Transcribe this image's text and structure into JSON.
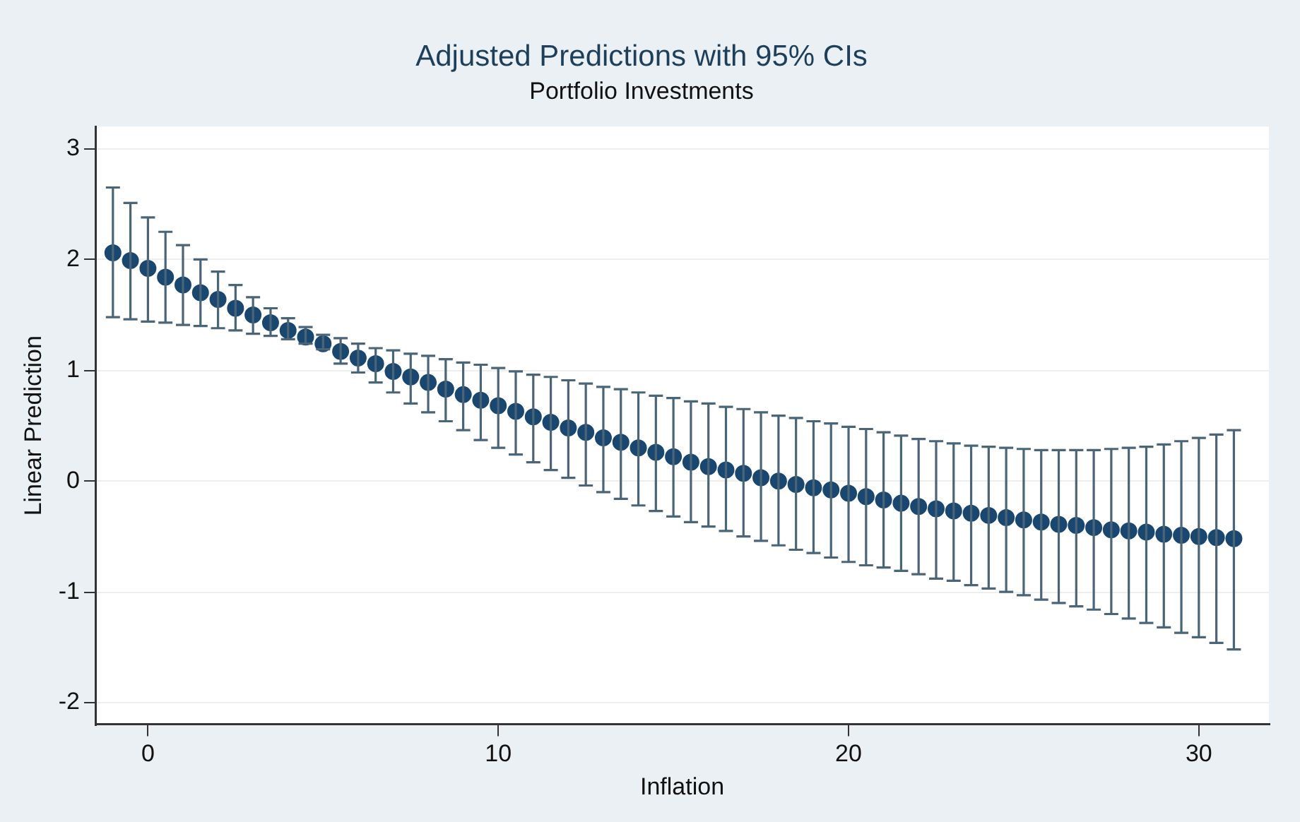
{
  "chart_data": {
    "type": "scatter",
    "title": "Adjusted Predictions with 95% CIs",
    "subtitle": "Portfolio Investments",
    "xlabel": "Inflation",
    "ylabel": "Linear Prediction",
    "x": [
      -1,
      -0.5,
      0,
      0.5,
      1,
      1.5,
      2,
      2.5,
      3,
      3.5,
      4,
      4.5,
      5,
      5.5,
      6,
      6.5,
      7,
      7.5,
      8,
      8.5,
      9,
      9.5,
      10,
      10.5,
      11,
      11.5,
      12,
      12.5,
      13,
      13.5,
      14,
      14.5,
      15,
      15.5,
      16,
      16.5,
      17,
      17.5,
      18,
      18.5,
      19,
      19.5,
      20,
      20.5,
      21,
      21.5,
      22,
      22.5,
      23,
      23.5,
      24,
      24.5,
      25,
      25.5,
      26,
      26.5,
      27,
      27.5,
      28,
      28.5,
      29,
      29.5,
      30,
      30.5,
      31
    ],
    "series": [
      {
        "color": "#1a476f",
        "values": [
          2.06,
          1.99,
          1.92,
          1.84,
          1.77,
          1.7,
          1.64,
          1.56,
          1.5,
          1.43,
          1.36,
          1.3,
          1.24,
          1.17,
          1.11,
          1.06,
          0.99,
          0.94,
          0.89,
          0.83,
          0.78,
          0.73,
          0.68,
          0.63,
          0.58,
          0.53,
          0.48,
          0.44,
          0.39,
          0.35,
          0.3,
          0.26,
          0.22,
          0.17,
          0.13,
          0.1,
          0.07,
          0.03,
          0.0,
          -0.03,
          -0.06,
          -0.08,
          -0.11,
          -0.14,
          -0.17,
          -0.2,
          -0.23,
          -0.25,
          -0.27,
          -0.29,
          -0.31,
          -0.33,
          -0.35,
          -0.37,
          -0.39,
          -0.4,
          -0.42,
          -0.44,
          -0.45,
          -0.46,
          -0.48,
          -0.49,
          -0.5,
          -0.51,
          -0.52
        ],
        "errors": [
          [
            1.48,
            2.65
          ],
          [
            1.46,
            2.51
          ],
          [
            1.44,
            2.38
          ],
          [
            1.43,
            2.25
          ],
          [
            1.41,
            2.13
          ],
          [
            1.4,
            2.0
          ],
          [
            1.38,
            1.89
          ],
          [
            1.36,
            1.77
          ],
          [
            1.33,
            1.66
          ],
          [
            1.31,
            1.56
          ],
          [
            1.28,
            1.47
          ],
          [
            1.24,
            1.39
          ],
          [
            1.19,
            1.32
          ],
          [
            1.06,
            1.29
          ],
          [
            0.98,
            1.24
          ],
          [
            0.89,
            1.2
          ],
          [
            0.8,
            1.18
          ],
          [
            0.7,
            1.15
          ],
          [
            0.62,
            1.13
          ],
          [
            0.54,
            1.1
          ],
          [
            0.46,
            1.07
          ],
          [
            0.37,
            1.05
          ],
          [
            0.3,
            1.02
          ],
          [
            0.24,
            0.99
          ],
          [
            0.17,
            0.96
          ],
          [
            0.1,
            0.94
          ],
          [
            0.03,
            0.91
          ],
          [
            -0.04,
            0.88
          ],
          [
            -0.1,
            0.85
          ],
          [
            -0.16,
            0.83
          ],
          [
            -0.22,
            0.8
          ],
          [
            -0.27,
            0.77
          ],
          [
            -0.32,
            0.75
          ],
          [
            -0.37,
            0.72
          ],
          [
            -0.41,
            0.7
          ],
          [
            -0.45,
            0.67
          ],
          [
            -0.5,
            0.65
          ],
          [
            -0.54,
            0.62
          ],
          [
            -0.58,
            0.59
          ],
          [
            -0.62,
            0.57
          ],
          [
            -0.65,
            0.54
          ],
          [
            -0.69,
            0.52
          ],
          [
            -0.73,
            0.49
          ],
          [
            -0.76,
            0.47
          ],
          [
            -0.78,
            0.44
          ],
          [
            -0.81,
            0.41
          ],
          [
            -0.84,
            0.38
          ],
          [
            -0.88,
            0.36
          ],
          [
            -0.9,
            0.34
          ],
          [
            -0.94,
            0.32
          ],
          [
            -0.97,
            0.31
          ],
          [
            -1.0,
            0.3
          ],
          [
            -1.03,
            0.29
          ],
          [
            -1.07,
            0.28
          ],
          [
            -1.1,
            0.28
          ],
          [
            -1.13,
            0.28
          ],
          [
            -1.16,
            0.28
          ],
          [
            -1.2,
            0.29
          ],
          [
            -1.24,
            0.3
          ],
          [
            -1.28,
            0.31
          ],
          [
            -1.32,
            0.33
          ],
          [
            -1.37,
            0.36
          ],
          [
            -1.41,
            0.39
          ],
          [
            -1.46,
            0.42
          ],
          [
            -1.52,
            0.46
          ]
        ]
      }
    ],
    "xlim": [
      -1.5,
      32
    ],
    "xticks": [
      0,
      10,
      20,
      30
    ],
    "ylim": [
      -2.2,
      3.2
    ],
    "yticks": [
      -2,
      -1,
      0,
      1,
      2,
      3
    ],
    "grid": "y",
    "legend": false,
    "marker": "circle"
  }
}
